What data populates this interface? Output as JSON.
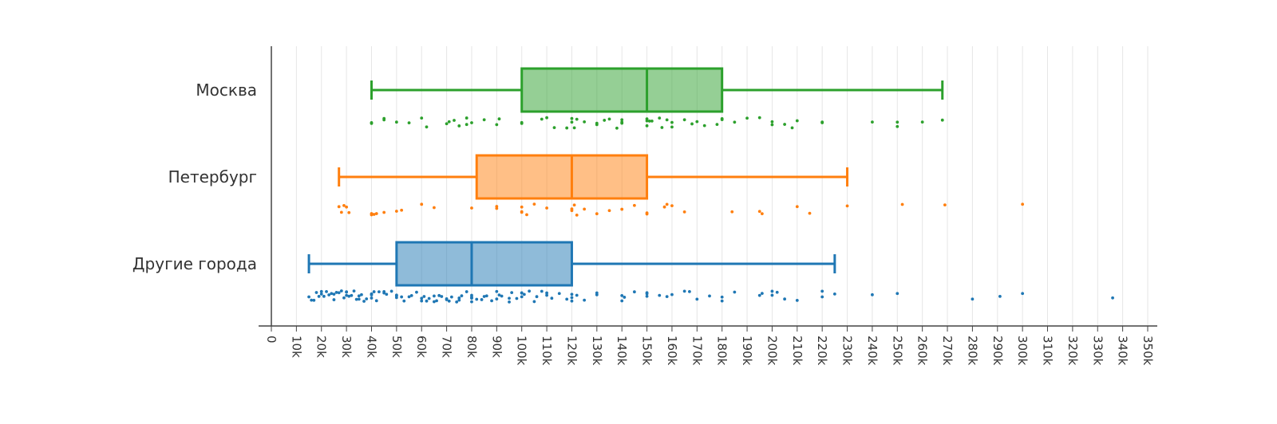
{
  "chart_data": {
    "type": "box",
    "orientation": "horizontal",
    "xlim": [
      0,
      350000
    ],
    "x_tick_step": 10000,
    "x_tick_labels": [
      "0",
      "10k",
      "20k",
      "30k",
      "40k",
      "50k",
      "60k",
      "70k",
      "80k",
      "90k",
      "100k",
      "110k",
      "120k",
      "130k",
      "140k",
      "150k",
      "160k",
      "170k",
      "180k",
      "190k",
      "200k",
      "210k",
      "220k",
      "230k",
      "240k",
      "250k",
      "260k",
      "270k",
      "280k",
      "290k",
      "300k",
      "310k",
      "320k",
      "330k",
      "340k",
      "350k"
    ],
    "grid": true,
    "categories": [
      "Москва",
      "Петербург",
      "Другие города"
    ],
    "series": [
      {
        "category": "Москва",
        "color": "#2ca02c",
        "box": {
          "min": 40000,
          "q1": 100000,
          "median": 150000,
          "q3": 180000,
          "max": 268000
        },
        "points": [
          40000,
          40000,
          45000,
          45000,
          50000,
          55000,
          60000,
          62000,
          70000,
          71000,
          73000,
          75000,
          78000,
          78000,
          80000,
          85000,
          90000,
          91000,
          100000,
          100000,
          108000,
          110000,
          113000,
          118000,
          120000,
          120000,
          121000,
          122000,
          125000,
          130000,
          130000,
          133000,
          135000,
          138000,
          140000,
          140000,
          140000,
          150000,
          150000,
          150000,
          151000,
          152000,
          155000,
          156000,
          158000,
          160000,
          160000,
          165000,
          168000,
          170000,
          173000,
          178000,
          180000,
          180000,
          185000,
          190000,
          195000,
          200000,
          200000,
          205000,
          208000,
          210000,
          220000,
          220000,
          240000,
          250000,
          250000,
          260000,
          268000
        ]
      },
      {
        "category": "Петербург",
        "color": "#ff7f0e",
        "box": {
          "min": 27000,
          "q1": 82000,
          "median": 120000,
          "q3": 150000,
          "max": 230000
        },
        "points": [
          27000,
          28000,
          29000,
          30000,
          31000,
          40000,
          40000,
          41000,
          42000,
          45000,
          50000,
          52000,
          60000,
          65000,
          80000,
          90000,
          90000,
          100000,
          100000,
          100000,
          102000,
          105000,
          110000,
          120000,
          120000,
          121000,
          122000,
          125000,
          130000,
          135000,
          140000,
          145000,
          150000,
          150000,
          157000,
          158000,
          160000,
          165000,
          184000,
          195000,
          196000,
          210000,
          215000,
          230000,
          252000,
          269000,
          300000
        ]
      },
      {
        "category": "Другие города",
        "color": "#1f77b4",
        "box": {
          "min": 15000,
          "q1": 50000,
          "median": 80000,
          "q3": 120000,
          "max": 225000
        },
        "points": [
          15000,
          16000,
          17000,
          18000,
          19000,
          20000,
          20000,
          21000,
          22000,
          23000,
          24000,
          25000,
          25000,
          26000,
          27000,
          28000,
          29000,
          30000,
          30000,
          30000,
          31000,
          32000,
          33000,
          34000,
          35000,
          35000,
          36000,
          37000,
          38000,
          40000,
          40000,
          40000,
          41000,
          42000,
          43000,
          45000,
          45000,
          46000,
          48000,
          50000,
          50000,
          50000,
          52000,
          53000,
          55000,
          56000,
          58000,
          60000,
          60000,
          61000,
          62000,
          63000,
          65000,
          65000,
          66000,
          67000,
          68000,
          70000,
          70000,
          71000,
          72000,
          74000,
          75000,
          75000,
          76000,
          78000,
          80000,
          80000,
          80000,
          80000,
          82000,
          84000,
          85000,
          86000,
          88000,
          90000,
          90000,
          91000,
          92000,
          95000,
          95000,
          96000,
          98000,
          100000,
          100000,
          100000,
          101000,
          103000,
          105000,
          106000,
          108000,
          110000,
          110000,
          112000,
          115000,
          118000,
          120000,
          120000,
          120000,
          122000,
          125000,
          130000,
          130000,
          140000,
          140000,
          141000,
          145000,
          150000,
          150000,
          150000,
          155000,
          158000,
          160000,
          165000,
          167000,
          170000,
          175000,
          180000,
          180000,
          185000,
          195000,
          196000,
          200000,
          200000,
          202000,
          205000,
          210000,
          220000,
          220000,
          225000,
          240000,
          250000,
          280000,
          291000,
          300000,
          336000
        ]
      }
    ]
  }
}
